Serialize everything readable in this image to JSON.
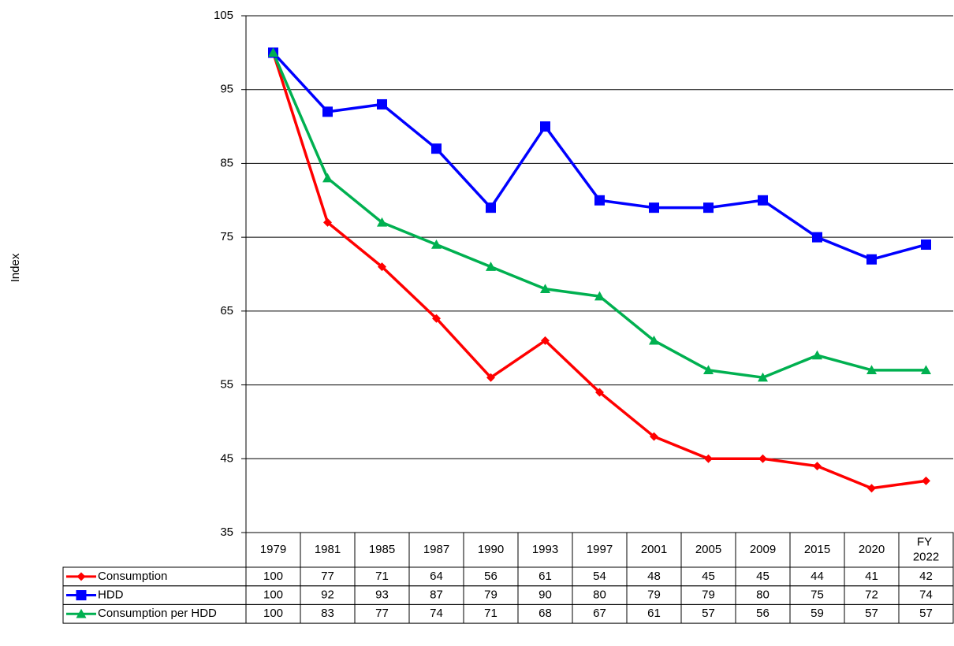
{
  "chart_data": {
    "type": "line",
    "y_label": "Index",
    "categories": [
      "1979",
      "1981",
      "1985",
      "1987",
      "1990",
      "1993",
      "1997",
      "2001",
      "2005",
      "2009",
      "2015",
      "2020",
      "FY 2022"
    ],
    "series": [
      {
        "name": "Consumption",
        "color": "#ff0000",
        "marker": "diamond",
        "values": [
          100,
          77,
          71,
          64,
          56,
          61,
          54,
          48,
          45,
          45,
          44,
          41,
          42
        ]
      },
      {
        "name": "HDD",
        "color": "#0000ff",
        "marker": "square",
        "values": [
          100,
          92,
          93,
          87,
          79,
          90,
          80,
          79,
          79,
          80,
          75,
          72,
          74
        ]
      },
      {
        "name": "Consumption per HDD",
        "color": "#00b050",
        "marker": "triangle",
        "values": [
          100,
          83,
          77,
          74,
          71,
          68,
          67,
          61,
          57,
          56,
          59,
          57,
          57
        ]
      }
    ],
    "ylim": [
      35,
      105
    ],
    "yticks": [
      35,
      45,
      55,
      65,
      75,
      85,
      95,
      105
    ],
    "grid": true
  }
}
